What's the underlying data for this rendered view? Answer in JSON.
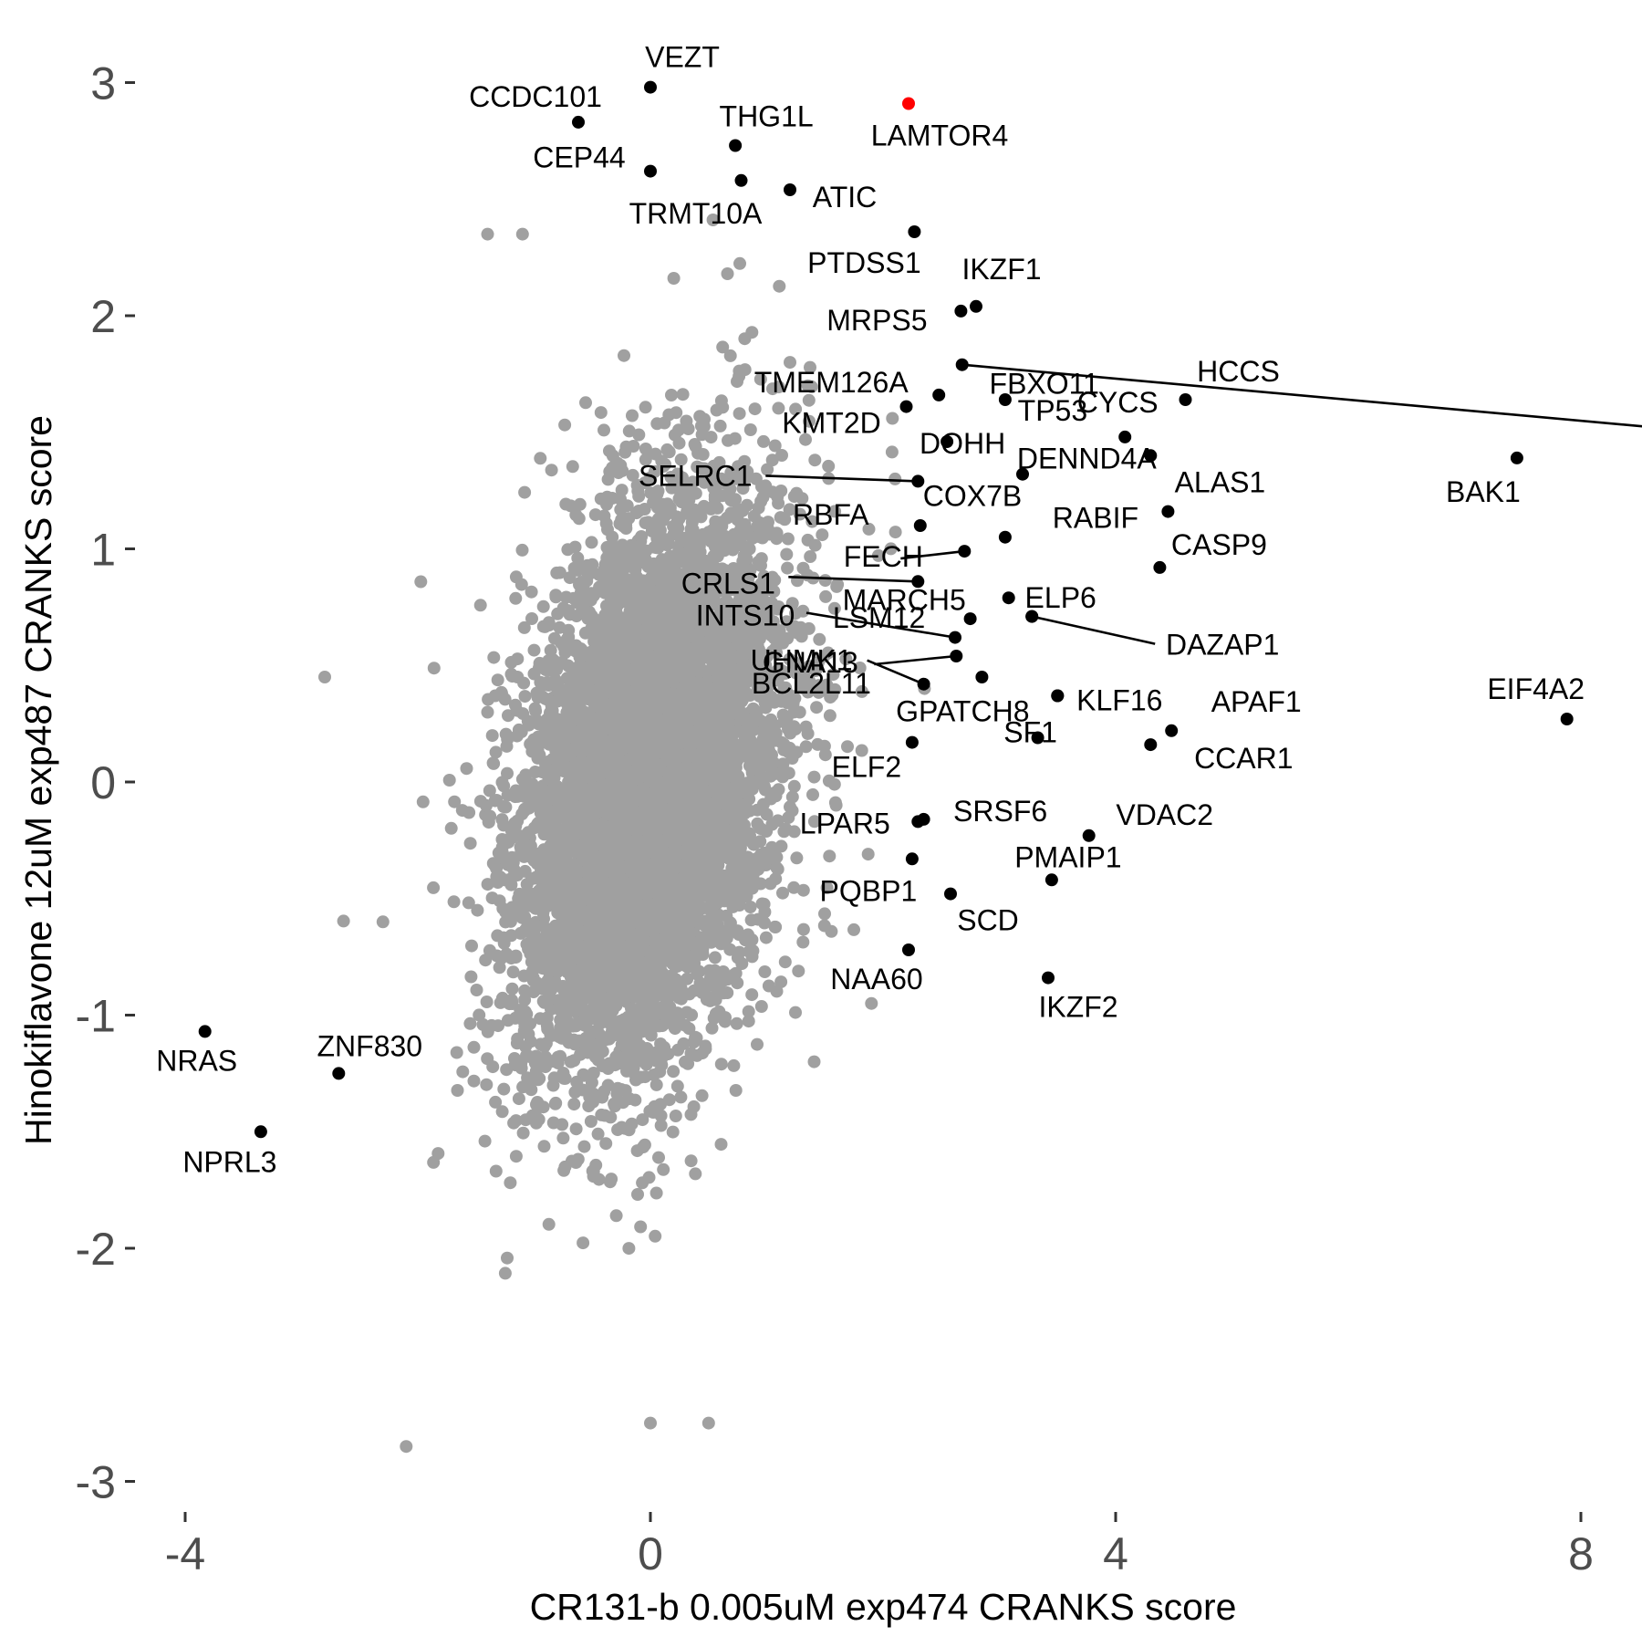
{
  "chart_data": {
    "type": "scatter",
    "title": "",
    "xlabel": "CR131-b 0.005uM exp474 CRANKS score",
    "ylabel": "Hinokiflavone 12uM exp487 CRANKS score",
    "xlim": [
      -4.6,
      8.2
    ],
    "ylim": [
      -3.2,
      3.2
    ],
    "x_ticks": [
      -4,
      0,
      4,
      8
    ],
    "y_ticks": [
      -3,
      -2,
      -1,
      0,
      1,
      2,
      3
    ],
    "x_tick_labels": [
      "-4",
      "0",
      "4",
      "8"
    ],
    "y_tick_labels": [
      "-3",
      "-2",
      "-1",
      "0",
      "1",
      "2",
      "3"
    ],
    "grid": false,
    "colors": {
      "background": "#ffffff",
      "bulk_points": "#a0a0a0",
      "labeled_points": "#000000",
      "highlight_point": "#ff0000",
      "tick_text": "#4d4d4d"
    },
    "background_cloud": {
      "description_color": "#a0a0a0",
      "center": [
        0,
        0
      ],
      "x_sd": 0.55,
      "y_sd": 0.62,
      "correlation": 0.35,
      "count": 6500,
      "extra_points": [
        [
          -2.8,
          0.45
        ],
        [
          -2.3,
          -0.6
        ],
        [
          -2.1,
          -2.85
        ],
        [
          -1.1,
          2.35
        ],
        [
          -1.4,
          2.35
        ],
        [
          0.5,
          -2.75
        ],
        [
          0,
          -2.75
        ],
        [
          1.2,
          1.8
        ],
        [
          1.9,
          -0.95
        ]
      ]
    },
    "labeled_points": [
      {
        "label": "VEZT",
        "x": 0.0,
        "y": 2.98
      },
      {
        "label": "CCDC101",
        "x": -0.62,
        "y": 2.83
      },
      {
        "label": "CEP44",
        "x": 0.0,
        "y": 2.62
      },
      {
        "label": "THG1L",
        "x": 0.73,
        "y": 2.73
      },
      {
        "label": "LAMTOR4",
        "x": 2.22,
        "y": 2.91,
        "highlight": true
      },
      {
        "label": "TRMT10A",
        "x": 0.78,
        "y": 2.58
      },
      {
        "label": "ATIC",
        "x": 1.2,
        "y": 2.54
      },
      {
        "label": "PTDSS1",
        "x": 2.27,
        "y": 2.36
      },
      {
        "label": "IKZF1",
        "x": 2.8,
        "y": 2.04
      },
      {
        "label": "MRPS5",
        "x": 2.67,
        "y": 2.02
      },
      {
        "label": "FBXO11",
        "x": 2.68,
        "y": 1.79
      },
      {
        "label": "TP53",
        "x": 3.05,
        "y": 1.64
      },
      {
        "label": "TMEM126A",
        "x": 2.48,
        "y": 1.66
      },
      {
        "label": "CYCS",
        "x": 4.08,
        "y": 1.48
      },
      {
        "label": "HCCS",
        "x": 4.6,
        "y": 1.64
      },
      {
        "label": "KMT2D",
        "x": 2.2,
        "y": 1.61
      },
      {
        "label": "DOHH",
        "x": 2.55,
        "y": 1.46
      },
      {
        "label": "DENND4A",
        "x": 4.3,
        "y": 1.4
      },
      {
        "label": "SELRC1",
        "x": 2.3,
        "y": 1.29
      },
      {
        "label": "COX7B",
        "x": 3.2,
        "y": 1.32
      },
      {
        "label": "ALAS1",
        "x": 4.45,
        "y": 1.16
      },
      {
        "label": "BAK1",
        "x": 7.45,
        "y": 1.39
      },
      {
        "label": "RBFA",
        "x": 2.32,
        "y": 1.1
      },
      {
        "label": "RABIF",
        "x": 3.05,
        "y": 1.05
      },
      {
        "label": "FECH",
        "x": 2.7,
        "y": 0.99
      },
      {
        "label": "CASP9",
        "x": 4.38,
        "y": 0.92
      },
      {
        "label": "CRLS1",
        "x": 2.3,
        "y": 0.86
      },
      {
        "label": "ELP6",
        "x": 3.08,
        "y": 0.79
      },
      {
        "label": "MARCH5",
        "x": 3.28,
        "y": 0.71
      },
      {
        "label": "INTS10",
        "x": 2.62,
        "y": 0.62
      },
      {
        "label": "LSM12",
        "x": 2.75,
        "y": 0.7
      },
      {
        "label": "DAZAP1",
        "x": 3.28,
        "y": 0.71
      },
      {
        "label": "BCL2L11",
        "x": 2.85,
        "y": 0.45
      },
      {
        "label": "GNA13",
        "x": 2.63,
        "y": 0.54
      },
      {
        "label": "EIF4A2",
        "x": 7.88,
        "y": 0.27
      },
      {
        "label": "GPATCH8",
        "x": 3.5,
        "y": 0.37
      },
      {
        "label": "UHMK1",
        "x": 2.35,
        "y": 0.42
      },
      {
        "label": "KLF16",
        "x": 3.5,
        "y": 0.37
      },
      {
        "label": "APAF1",
        "x": 4.48,
        "y": 0.22
      },
      {
        "label": "SF1",
        "x": 3.33,
        "y": 0.19
      },
      {
        "label": "CCAR1",
        "x": 4.3,
        "y": 0.16
      },
      {
        "label": "ELF2",
        "x": 2.25,
        "y": 0.17
      },
      {
        "label": "SRSF6",
        "x": 2.35,
        "y": -0.16
      },
      {
        "label": "LPAR5",
        "x": 2.3,
        "y": -0.17
      },
      {
        "label": "VDAC2",
        "x": 3.77,
        "y": -0.23
      },
      {
        "label": "PMAIP1",
        "x": 3.45,
        "y": -0.42
      },
      {
        "label": "PQBP1",
        "x": 2.25,
        "y": -0.33
      },
      {
        "label": "SCD",
        "x": 2.58,
        "y": -0.48
      },
      {
        "label": "NAA60",
        "x": 2.22,
        "y": -0.72
      },
      {
        "label": "IKZF2",
        "x": 3.42,
        "y": -0.84
      },
      {
        "label": "NRAS",
        "x": -3.83,
        "y": -1.07
      },
      {
        "label": "ZNF830",
        "x": -2.68,
        "y": -1.25
      },
      {
        "label": "NPRL3",
        "x": -3.35,
        "y": -1.5
      }
    ]
  }
}
